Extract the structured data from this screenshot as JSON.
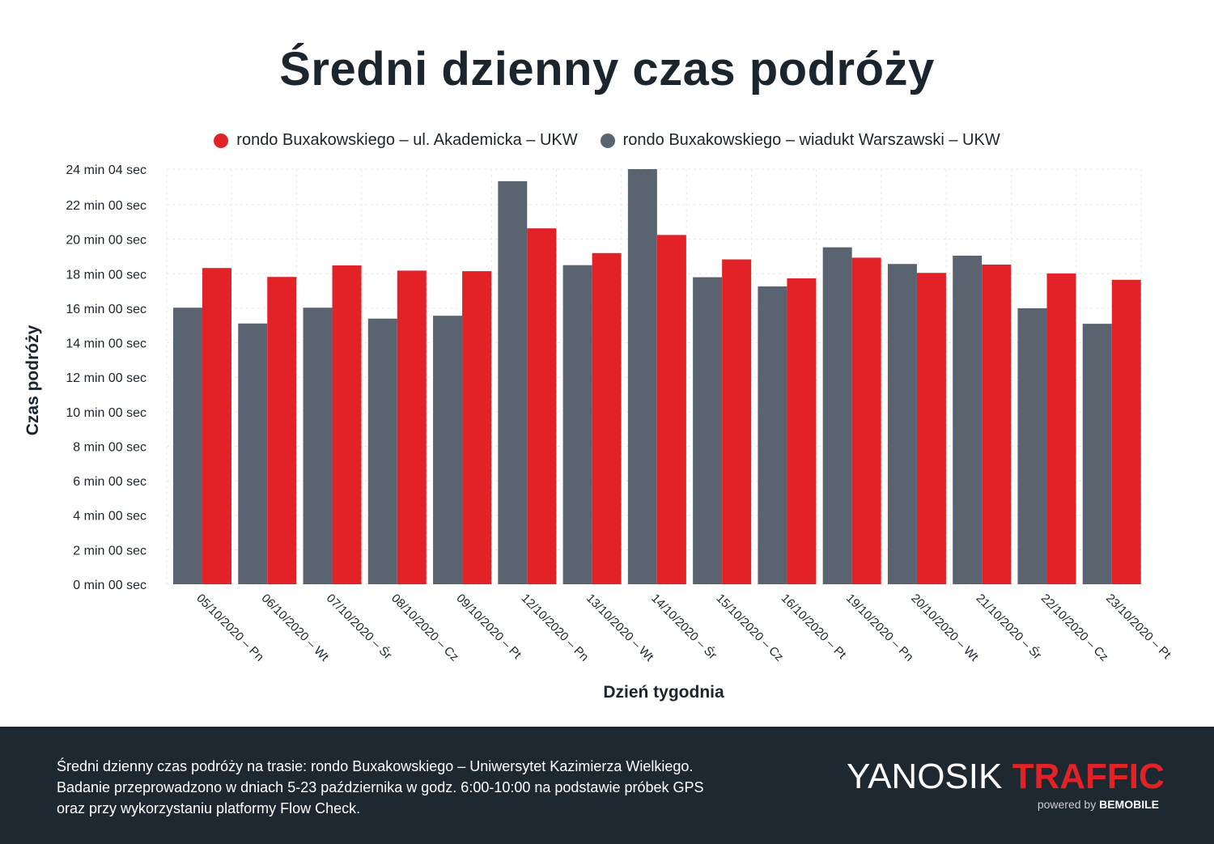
{
  "header": {
    "title": "Średni dzienny czas podróży"
  },
  "legend": {
    "items": [
      {
        "label": "rondo Buxakowskiego – ul. Akademicka – UKW",
        "color": "#e32228"
      },
      {
        "label": "rondo Buxakowskiego – wiadukt Warszawski – UKW",
        "color": "#5a6470"
      }
    ]
  },
  "chart_data": {
    "type": "bar",
    "title": "Średni dzienny czas podróży",
    "xlabel": "Dzień tygodnia",
    "ylabel": "Czas podróży",
    "y_unit": "seconds",
    "ylim": [
      0,
      1444
    ],
    "y_tick_values": [
      0,
      120,
      240,
      360,
      480,
      600,
      720,
      840,
      960,
      1080,
      1200,
      1320,
      1444
    ],
    "y_tick_labels": [
      "0 min 00 sec",
      "2 min 00 sec",
      "4 min 00 sec",
      "6 min 00 sec",
      "8 min 00 sec",
      "10 min 00 sec",
      "12 min 00 sec",
      "14 min 00 sec",
      "16 min 00 sec",
      "18 min 00 sec",
      "20 min 00 sec",
      "22 min 00 sec",
      "24 min 04 sec"
    ],
    "grid": true,
    "legend_position": "top",
    "categories": [
      "05/10/2020 – Pn",
      "06/10/2020 – Wt",
      "07/10/2020 – Śr",
      "08/10/2020 – Cz",
      "09/10/2020 – Pt",
      "12/10/2020 – Pn",
      "13/10/2020 – Wt",
      "14/10/2020 – Śr",
      "15/10/2020 – Cz",
      "16/10/2020 – Pt",
      "19/10/2020 – Pn",
      "20/10/2020 – Wt",
      "21/10/2020 – Śr",
      "22/10/2020 – Cz",
      "23/10/2020 – Pt"
    ],
    "series": [
      {
        "name": "rondo Buxakowskiego – wiadukt Warszawski – UKW",
        "color": "#5a6470",
        "values": [
          962,
          907,
          962,
          924,
          934,
          1402,
          1110,
          1444,
          1068,
          1036,
          1172,
          1114,
          1143,
          960,
          906
        ]
      },
      {
        "name": "rondo Buxakowskiego – ul. Akademicka – UKW",
        "color": "#e32228",
        "values": [
          1100,
          1069,
          1109,
          1091,
          1089,
          1238,
          1152,
          1215,
          1130,
          1064,
          1136,
          1083,
          1112,
          1081,
          1059
        ]
      }
    ]
  },
  "footer": {
    "lines": [
      "Średni dzienny czas podróży na trasie: rondo Buxakowskiego – Uniwersytet Kazimierza Wielkiego.",
      "Badanie przeprowadzono w dniach 5-23 października w godz. 6:00-10:00 na podstawie próbek GPS",
      "oraz przy wykorzystaniu platformy Flow Check."
    ],
    "brand_a": "YANOSIK",
    "brand_b": "TRAFFIC",
    "brand_sub_a": "powered by",
    "brand_sub_b": "BEMOBILE"
  }
}
